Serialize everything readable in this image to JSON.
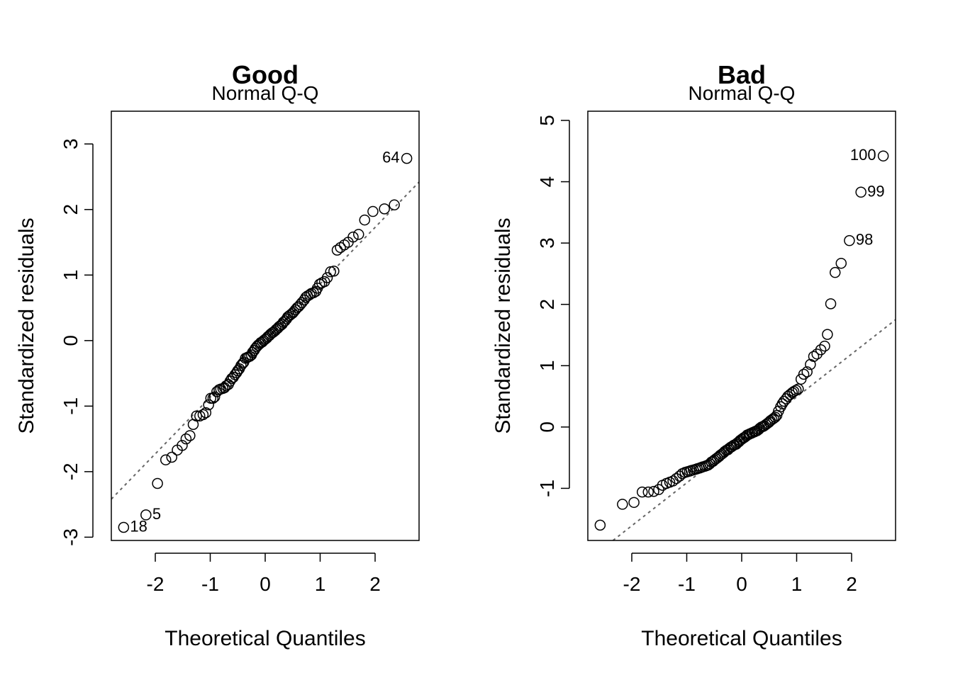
{
  "chart_data": [
    {
      "type": "scatter",
      "title": "Good",
      "subtitle": "Normal Q-Q",
      "xlabel": "Theoretical Quantiles",
      "ylabel": "Standardized residuals",
      "xlim": [
        -2.8,
        2.8
      ],
      "ylim": [
        -3.05,
        3.5
      ],
      "xticks": [
        -2,
        -1,
        0,
        1,
        2
      ],
      "yticks": [
        -3,
        -2,
        -1,
        0,
        1,
        2,
        3
      ],
      "reference_line": {
        "intercept": 0.0,
        "slope": 0.864
      },
      "points": [
        [
          -2.576,
          -2.85
        ],
        [
          -2.17,
          -2.66
        ],
        [
          -1.96,
          -2.18
        ],
        [
          -1.81,
          -1.82
        ],
        [
          -1.7,
          -1.78
        ],
        [
          -1.6,
          -1.67
        ],
        [
          -1.51,
          -1.6
        ],
        [
          -1.44,
          -1.5
        ],
        [
          -1.37,
          -1.45
        ],
        [
          -1.31,
          -1.28
        ],
        [
          -1.25,
          -1.15
        ],
        [
          -1.19,
          -1.15
        ],
        [
          -1.13,
          -1.13
        ],
        [
          -1.08,
          -1.1
        ],
        [
          -1.03,
          -0.98
        ],
        [
          -0.99,
          -0.88
        ],
        [
          -0.95,
          -0.88
        ],
        [
          -0.92,
          -0.86
        ],
        [
          -0.88,
          -0.78
        ],
        [
          -0.84,
          -0.75
        ],
        [
          -0.81,
          -0.74
        ],
        [
          -0.77,
          -0.73
        ],
        [
          -0.74,
          -0.72
        ],
        [
          -0.71,
          -0.69
        ],
        [
          -0.67,
          -0.67
        ],
        [
          -0.64,
          -0.62
        ],
        [
          -0.61,
          -0.58
        ],
        [
          -0.58,
          -0.56
        ],
        [
          -0.55,
          -0.52
        ],
        [
          -0.52,
          -0.49
        ],
        [
          -0.5,
          -0.46
        ],
        [
          -0.47,
          -0.43
        ],
        [
          -0.44,
          -0.38
        ],
        [
          -0.41,
          -0.35
        ],
        [
          -0.39,
          -0.33
        ],
        [
          -0.36,
          -0.27
        ],
        [
          -0.33,
          -0.26
        ],
        [
          -0.31,
          -0.25
        ],
        [
          -0.28,
          -0.24
        ],
        [
          -0.25,
          -0.22
        ],
        [
          -0.23,
          -0.18
        ],
        [
          -0.2,
          -0.15
        ],
        [
          -0.18,
          -0.12
        ],
        [
          -0.15,
          -0.09
        ],
        [
          -0.13,
          -0.07
        ],
        [
          -0.1,
          -0.05
        ],
        [
          -0.08,
          -0.03
        ],
        [
          -0.05,
          -0.02
        ],
        [
          -0.03,
          0.0
        ],
        [
          0.0,
          0.02
        ],
        [
          0.03,
          0.04
        ],
        [
          0.05,
          0.06
        ],
        [
          0.08,
          0.08
        ],
        [
          0.1,
          0.1
        ],
        [
          0.13,
          0.12
        ],
        [
          0.15,
          0.13
        ],
        [
          0.18,
          0.15
        ],
        [
          0.2,
          0.17
        ],
        [
          0.23,
          0.19
        ],
        [
          0.25,
          0.21
        ],
        [
          0.28,
          0.23
        ],
        [
          0.31,
          0.25
        ],
        [
          0.33,
          0.28
        ],
        [
          0.36,
          0.3
        ],
        [
          0.39,
          0.33
        ],
        [
          0.41,
          0.36
        ],
        [
          0.44,
          0.38
        ],
        [
          0.47,
          0.4
        ],
        [
          0.5,
          0.42
        ],
        [
          0.52,
          0.44
        ],
        [
          0.55,
          0.47
        ],
        [
          0.58,
          0.5
        ],
        [
          0.61,
          0.52
        ],
        [
          0.64,
          0.55
        ],
        [
          0.67,
          0.58
        ],
        [
          0.71,
          0.62
        ],
        [
          0.74,
          0.66
        ],
        [
          0.77,
          0.68
        ],
        [
          0.81,
          0.7
        ],
        [
          0.84,
          0.72
        ],
        [
          0.88,
          0.73
        ],
        [
          0.92,
          0.75
        ],
        [
          0.95,
          0.8
        ],
        [
          0.99,
          0.86
        ],
        [
          1.03,
          0.88
        ],
        [
          1.08,
          0.9
        ],
        [
          1.13,
          0.96
        ],
        [
          1.19,
          1.05
        ],
        [
          1.25,
          1.06
        ],
        [
          1.31,
          1.38
        ],
        [
          1.37,
          1.42
        ],
        [
          1.44,
          1.46
        ],
        [
          1.51,
          1.5
        ],
        [
          1.6,
          1.58
        ],
        [
          1.7,
          1.62
        ],
        [
          1.81,
          1.84
        ],
        [
          1.96,
          1.97
        ],
        [
          2.17,
          2.01
        ],
        [
          2.35,
          2.07
        ],
        [
          2.576,
          2.78
        ]
      ],
      "labels": [
        {
          "text": "64",
          "x": 2.576,
          "y": 2.78,
          "side": "left"
        },
        {
          "text": "5",
          "x": -2.17,
          "y": -2.66,
          "side": "right"
        },
        {
          "text": "18",
          "x": -2.576,
          "y": -2.85,
          "side": "right"
        }
      ]
    },
    {
      "type": "scatter",
      "title": "Bad",
      "subtitle": "Normal Q-Q",
      "xlabel": "Theoretical Quantiles",
      "ylabel": "Standardized residuals",
      "xlim": [
        -2.8,
        2.8
      ],
      "ylim": [
        -1.85,
        5.15
      ],
      "xticks": [
        -2,
        -1,
        0,
        1,
        2
      ],
      "yticks": [
        -1,
        0,
        1,
        2,
        3,
        4,
        5
      ],
      "reference_line": {
        "intercept": -0.21,
        "slope": 0.7
      },
      "points": [
        [
          -2.576,
          -1.6
        ],
        [
          -2.17,
          -1.26
        ],
        [
          -1.96,
          -1.23
        ],
        [
          -1.81,
          -1.06
        ],
        [
          -1.7,
          -1.06
        ],
        [
          -1.6,
          -1.05
        ],
        [
          -1.51,
          -1.02
        ],
        [
          -1.44,
          -0.95
        ],
        [
          -1.37,
          -0.92
        ],
        [
          -1.31,
          -0.9
        ],
        [
          -1.25,
          -0.88
        ],
        [
          -1.19,
          -0.84
        ],
        [
          -1.13,
          -0.8
        ],
        [
          -1.08,
          -0.76
        ],
        [
          -1.03,
          -0.74
        ],
        [
          -0.99,
          -0.73
        ],
        [
          -0.95,
          -0.72
        ],
        [
          -0.92,
          -0.71
        ],
        [
          -0.88,
          -0.7
        ],
        [
          -0.84,
          -0.69
        ],
        [
          -0.81,
          -0.68
        ],
        [
          -0.77,
          -0.67
        ],
        [
          -0.74,
          -0.66
        ],
        [
          -0.71,
          -0.65
        ],
        [
          -0.67,
          -0.64
        ],
        [
          -0.64,
          -0.63
        ],
        [
          -0.61,
          -0.62
        ],
        [
          -0.58,
          -0.6
        ],
        [
          -0.55,
          -0.57
        ],
        [
          -0.52,
          -0.56
        ],
        [
          -0.5,
          -0.54
        ],
        [
          -0.47,
          -0.52
        ],
        [
          -0.44,
          -0.5
        ],
        [
          -0.41,
          -0.48
        ],
        [
          -0.39,
          -0.46
        ],
        [
          -0.36,
          -0.44
        ],
        [
          -0.33,
          -0.42
        ],
        [
          -0.31,
          -0.4
        ],
        [
          -0.28,
          -0.38
        ],
        [
          -0.25,
          -0.37
        ],
        [
          -0.23,
          -0.35
        ],
        [
          -0.2,
          -0.33
        ],
        [
          -0.18,
          -0.32
        ],
        [
          -0.15,
          -0.3
        ],
        [
          -0.13,
          -0.29
        ],
        [
          -0.1,
          -0.28
        ],
        [
          -0.08,
          -0.26
        ],
        [
          -0.05,
          -0.24
        ],
        [
          -0.03,
          -0.22
        ],
        [
          0.0,
          -0.2
        ],
        [
          0.03,
          -0.18
        ],
        [
          0.05,
          -0.17
        ],
        [
          0.08,
          -0.15
        ],
        [
          0.1,
          -0.13
        ],
        [
          0.13,
          -0.12
        ],
        [
          0.15,
          -0.11
        ],
        [
          0.18,
          -0.1
        ],
        [
          0.2,
          -0.09
        ],
        [
          0.23,
          -0.08
        ],
        [
          0.25,
          -0.07
        ],
        [
          0.28,
          -0.06
        ],
        [
          0.31,
          -0.04
        ],
        [
          0.33,
          -0.02
        ],
        [
          0.36,
          0.0
        ],
        [
          0.39,
          0.01
        ],
        [
          0.41,
          0.02
        ],
        [
          0.44,
          0.04
        ],
        [
          0.47,
          0.06
        ],
        [
          0.5,
          0.08
        ],
        [
          0.52,
          0.1
        ],
        [
          0.55,
          0.12
        ],
        [
          0.58,
          0.14
        ],
        [
          0.61,
          0.16
        ],
        [
          0.64,
          0.19
        ],
        [
          0.67,
          0.26
        ],
        [
          0.71,
          0.33
        ],
        [
          0.74,
          0.38
        ],
        [
          0.77,
          0.42
        ],
        [
          0.81,
          0.46
        ],
        [
          0.84,
          0.5
        ],
        [
          0.88,
          0.53
        ],
        [
          0.92,
          0.56
        ],
        [
          0.95,
          0.58
        ],
        [
          0.99,
          0.6
        ],
        [
          1.03,
          0.62
        ],
        [
          1.08,
          0.78
        ],
        [
          1.13,
          0.86
        ],
        [
          1.19,
          0.9
        ],
        [
          1.25,
          1.02
        ],
        [
          1.31,
          1.15
        ],
        [
          1.37,
          1.19
        ],
        [
          1.44,
          1.26
        ],
        [
          1.51,
          1.32
        ],
        [
          1.56,
          1.51
        ],
        [
          1.62,
          2.01
        ],
        [
          1.7,
          2.52
        ],
        [
          1.81,
          2.67
        ],
        [
          1.96,
          3.04
        ],
        [
          2.17,
          3.83
        ],
        [
          2.576,
          4.42
        ]
      ],
      "labels": [
        {
          "text": "100",
          "x": 2.576,
          "y": 4.42,
          "side": "left"
        },
        {
          "text": "99",
          "x": 2.17,
          "y": 3.83,
          "side": "right"
        },
        {
          "text": "98",
          "x": 1.96,
          "y": 3.04,
          "side": "right"
        }
      ]
    }
  ]
}
